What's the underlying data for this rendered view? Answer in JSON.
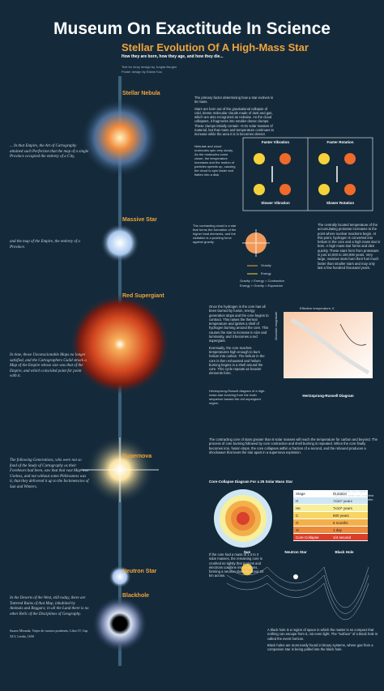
{
  "header": {
    "title": "Museum On Exactitude In Science",
    "subtitle": "Stellar Evolution Of A High-Mass Star",
    "tagline": "How they are born, how they age, and how they die...",
    "credits": [
      "Text for story design by Jurgita Borgen",
      "Poster design by Elaine Koo"
    ]
  },
  "quotes": [
    "... In that Empire, the Art of Cartography attained such Perfection that the map of a single Province occupied the entirety of a City,",
    "and the map of the Empire, the entirety of a Province.",
    "In time, those Unconscionable Maps no longer satisfied, and the Cartographers Guild struck a Map of the Empire whose size was that of the Empire, and which coincided point for point with it.",
    "The following Generations, who were not so fond of the Study of Cartography as their Forebears had been, saw that that vast Map was Useless, and not without some Pitilessness was it, that they delivered it up to the Inclemencies of Sun and Winters.",
    "In the Deserts of the West, still today, there are Tattered Ruins of that Map, inhabited by Animals and Beggars; in all the Land there is no other Relic of the Disciplines of Geography.",
    "Suarez Miranda, Viajes de varones prudentes, Libro IV, Cap. XLV, Lerida, 1658"
  ],
  "stages": [
    {
      "label": "Stellar Nebula",
      "text": [
        "The primary factor determining how a star evolves is its mass.",
        "Stars are born out of the gravitational collapse of cold, dense molecular clouds made of dust and gas, which are also recognized as nebulae. As the cloud collapses, it fragments into smaller dense clumps. These clumps initially contain ~0.01 solar masses of material, but that mass and temperature continues to increase while the area it is in becomes denser."
      ],
      "note": "Nebulae and cloud molecules spin very slowly. As the molecules come closer, the temperature increases and the motion of particles speeds up, causing the cloud to spin faster and flatten into a disk."
    },
    {
      "label": "Massive Star",
      "text": [
        "The centrally located temperature of the accumulating protostar increases to the point where nuclear reactions begin. At this point, hydrogen is converted into helium in the core and a high mass star is born. A high mass star forms and dies quickly. These stars form from protostars in just 10,000 to 100,000 years. Very large, massive stars burn their fuel much faster than smaller stars and may only last a few hundred thousand years."
      ],
      "note": "The contracting cloud is a star that forms the formation of the higher heat elements, and the radiation is a pushing force against gravity."
    },
    {
      "label": "Red Supergiant",
      "text": [
        "Once the hydrogen in the core has all been burned by fusion, energy generation stops and the core begins to contract. This raises the thermal temperature and ignites a shell of hydrogen burning around the core. This causes the star to increase in size and luminosity, and it becomes a red supergiant.",
        "Eventually, the core reaches temperatures high enough to burn helium into carbon. The helium in the core is then exhausted and helium burning begins in a shell around the core. This cycle repeats as heavier elements form."
      ],
      "note": "Hertzsprung-Russell diagram of a high-mass star evolving from the main sequence toward the red supergiant region."
    },
    {
      "label": "Supernova",
      "text": [
        "The contracting core of stars greater than 8 solar masses will reach the temperature for carbon and beyond. The process of core burning followed by core contraction and shell burning is repeated. When the core finally becomes iron, fusion stops, the core collapses within a fraction of a second, and the rebound produces a shockwave that tears the star apart in a supernova explosion."
      ],
      "note": "Inner shells burn lighter elements while the heaviest elements form at the center."
    },
    {
      "label": "Neutron Star",
      "text": [
        "If the core had a mass of 1.4 to 3 solar masses, the remaining core is crushed so tightly that protons and electrons combine into neutrons, forming a neutron star only about 20 km across."
      ],
      "note": ""
    },
    {
      "label": "Blackhole",
      "text": [
        "A black hole is a region of space in which the matter is so compact that nothing can escape from it, not even light. The \"surface\" of a black hole is called the event horizon.",
        "Black holes are most easily found in binary systems, where gas from a companion star is being pulled into the black hole."
      ],
      "note": ""
    }
  ],
  "vibration_diagram": {
    "labels": [
      "Faster Vibration",
      "Faster Rotation",
      "Slower Vibration",
      "Slower Rotation"
    ]
  },
  "force_diagram": {
    "gravity": "Gravity",
    "energy": "Energy",
    "rules": [
      "Gravity > Energy = Contraction",
      "Energy > Gravity = Expansion"
    ]
  },
  "hr_diagram": {
    "title": "Hertzsprung-Russell Diagram",
    "x_label": "Effective temperature, K",
    "y_label": "Absolute magnitude"
  },
  "core_collapse": {
    "title": "Core-Collapse Diagram For a 25 Solar Mass Star",
    "header": [
      "Stage",
      "Duration"
    ],
    "rows": [
      [
        "H",
        "7x10⁶ years"
      ],
      [
        "He",
        "7x10⁵ years"
      ],
      [
        "C",
        "600 years"
      ],
      [
        "O",
        "6 months"
      ],
      [
        "Si",
        "1 day"
      ],
      [
        "Core Collapse",
        "1/4 second"
      ]
    ]
  },
  "remnants": [
    "Sun",
    "Neutron Star",
    "Black Hole"
  ]
}
